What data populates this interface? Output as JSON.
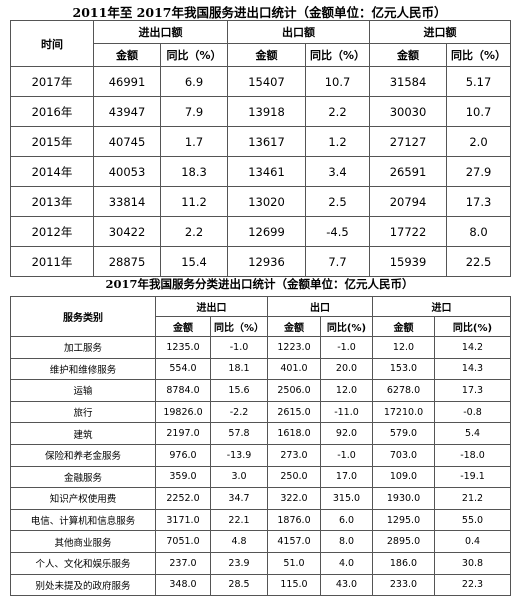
{
  "table1": {
    "title": "2011年至 2017年我国服务进出口统计（金额单位：亿元人民币）",
    "col_time": "时间",
    "groups": [
      "进出口额",
      "出口额",
      "进口额"
    ],
    "sub_amount": "金额",
    "sub_yoy": "同比（%）",
    "rows": [
      [
        "2017年",
        "46991",
        "6.9",
        "15407",
        "10.7",
        "31584",
        "5.17"
      ],
      [
        "2016年",
        "43947",
        "7.9",
        "13918",
        "2.2",
        "30030",
        "10.7"
      ],
      [
        "2015年",
        "40745",
        "1.7",
        "13617",
        "1.2",
        "27127",
        "2.0"
      ],
      [
        "2014年",
        "40053",
        "18.3",
        "13461",
        "3.4",
        "26591",
        "27.9"
      ],
      [
        "2013年",
        "33814",
        "11.2",
        "13020",
        "2.5",
        "20794",
        "17.3"
      ],
      [
        "2012年",
        "30422",
        "2.2",
        "12699",
        "-4.5",
        "17722",
        "8.0"
      ],
      [
        "2011年",
        "28875",
        "15.4",
        "12936",
        "7.7",
        "15939",
        "22.5"
      ]
    ]
  },
  "table2": {
    "title": "2017年我国服务分类进出口统计（金额单位：亿元人民币）",
    "col_category": "服务类别",
    "groups": [
      "进出口",
      "出口",
      "进口"
    ],
    "sub_amount": "金额",
    "sub_yoy_a": "同比（%）",
    "sub_yoy_b": "同比(%)",
    "sub_yoy_c": "同比(%)",
    "rows": [
      [
        "加工服务",
        "1235.0",
        "-1.0",
        "1223.0",
        "-1.0",
        "12.0",
        "14.2"
      ],
      [
        "维护和维修服务",
        "554.0",
        "18.1",
        "401.0",
        "20.0",
        "153.0",
        "14.3"
      ],
      [
        "运输",
        "8784.0",
        "15.6",
        "2506.0",
        "12.0",
        "6278.0",
        "17.3"
      ],
      [
        "旅行",
        "19826.0",
        "-2.2",
        "2615.0",
        "-11.0",
        "17210.0",
        "-0.8"
      ],
      [
        "建筑",
        "2197.0",
        "57.8",
        "1618.0",
        "92.0",
        "579.0",
        "5.4"
      ],
      [
        "保险和养老金服务",
        "976.0",
        "-13.9",
        "273.0",
        "-1.0",
        "703.0",
        "-18.0"
      ],
      [
        "金融服务",
        "359.0",
        "3.0",
        "250.0",
        "17.0",
        "109.0",
        "-19.1"
      ],
      [
        "知识产权使用费",
        "2252.0",
        "34.7",
        "322.0",
        "315.0",
        "1930.0",
        "21.2"
      ],
      [
        "电信、计算机和信息服务",
        "3171.0",
        "22.1",
        "1876.0",
        "6.0",
        "1295.0",
        "55.0"
      ],
      [
        "其他商业服务",
        "7051.0",
        "4.8",
        "4157.0",
        "8.0",
        "2895.0",
        "0.4"
      ],
      [
        "个人、文化和娱乐服务",
        "237.0",
        "23.9",
        "51.0",
        "4.0",
        "186.0",
        "30.8"
      ],
      [
        "别处未提及的政府服务",
        "348.0",
        "28.5",
        "115.0",
        "43.0",
        "233.0",
        "22.3"
      ]
    ]
  }
}
